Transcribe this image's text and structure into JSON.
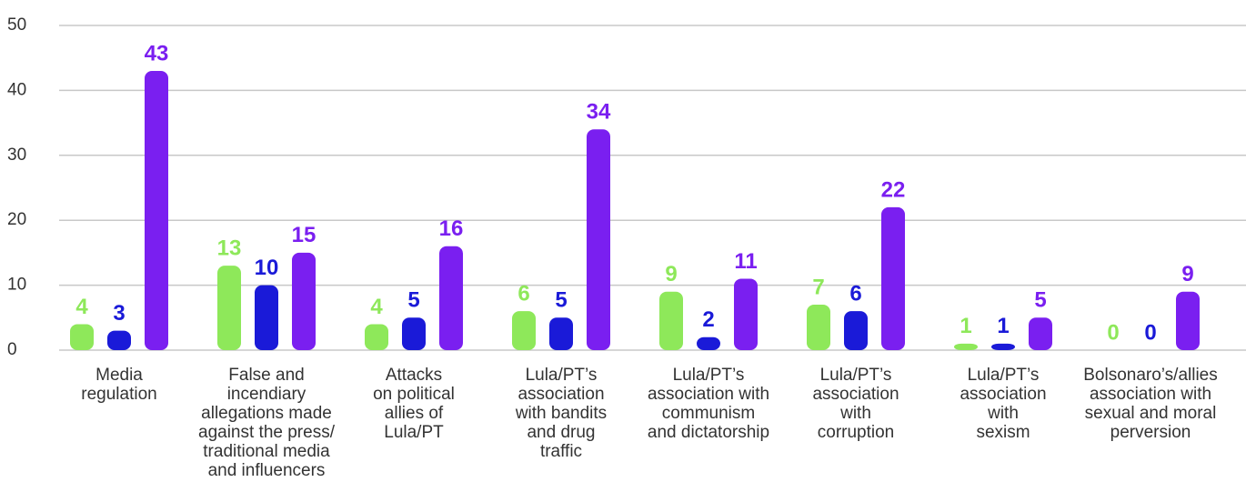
{
  "chart_data": {
    "type": "bar",
    "categories": [
      "Media\nregulation",
      "False and\nincendiary\nallegations made\nagainst the press/\ntraditional media\nand influencers",
      "Attacks\non political\nallies of\nLula/PT",
      "Lula/PT’s\nassociation\nwith bandits\nand drug\ntraffic",
      "Lula/PT’s\nassociation with\ncommunism\nand dictatorship",
      "Lula/PT’s\nassociation\nwith\ncorruption",
      "Lula/PT’s\nassociation\nwith\nsexism",
      "Bolsonaro’s/allies\nassociation with\nsexual and moral\nperversion"
    ],
    "series": [
      {
        "color": "#8ee85a",
        "values": [
          4,
          13,
          4,
          6,
          9,
          7,
          1,
          0
        ]
      },
      {
        "color": "#1a1ad8",
        "values": [
          3,
          10,
          5,
          5,
          2,
          6,
          1,
          0
        ]
      },
      {
        "color": "#7a1ff0",
        "values": [
          43,
          15,
          16,
          34,
          11,
          22,
          5,
          9
        ]
      }
    ],
    "ylim": [
      0,
      50
    ],
    "yticks": [
      0,
      10,
      20,
      30,
      40,
      50
    ],
    "grid": true
  }
}
